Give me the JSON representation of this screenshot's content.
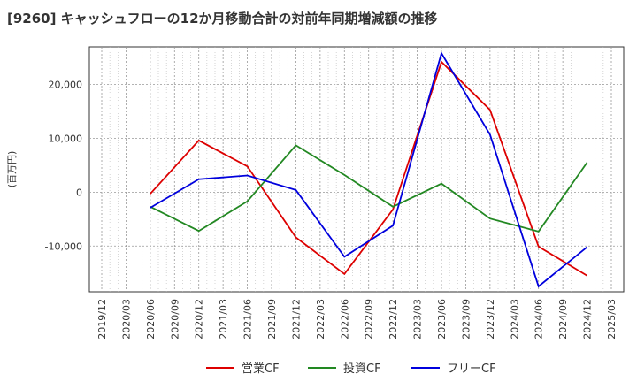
{
  "chart_data": {
    "type": "line",
    "title": "[9260]  キャッシュフローの12か月移動合計の対前年同期増減額の推移",
    "ylabel": "(百万円)",
    "xlabel": "",
    "ylim": [
      -18500,
      27000
    ],
    "yticks": [
      20000,
      10000,
      0,
      -10000
    ],
    "ytick_labels": [
      "20,000",
      "10,000",
      "0",
      "-10,000"
    ],
    "categories": [
      "2019/12",
      "2020/03",
      "2020/06",
      "2020/09",
      "2020/12",
      "2021/03",
      "2021/06",
      "2021/09",
      "2021/12",
      "2022/03",
      "2022/06",
      "2022/09",
      "2022/12",
      "2023/03",
      "2023/06",
      "2023/09",
      "2023/12",
      "2024/03",
      "2024/06",
      "2024/09",
      "2024/12",
      "2025/03"
    ],
    "grid": true,
    "legend_position": "bottom",
    "series": [
      {
        "name": "営業CF",
        "color": "#dd0000",
        "points": [
          {
            "x": "2020/06",
            "y": -300
          },
          {
            "x": "2020/12",
            "y": 9600
          },
          {
            "x": "2021/06",
            "y": 4800
          },
          {
            "x": "2021/12",
            "y": -8400
          },
          {
            "x": "2022/06",
            "y": -15200
          },
          {
            "x": "2022/12",
            "y": -3200
          },
          {
            "x": "2023/06",
            "y": 24200
          },
          {
            "x": "2023/12",
            "y": 15300
          },
          {
            "x": "2024/06",
            "y": -10100
          },
          {
            "x": "2024/12",
            "y": -15500
          }
        ]
      },
      {
        "name": "投資CF",
        "color": "#228822",
        "points": [
          {
            "x": "2020/06",
            "y": -2700
          },
          {
            "x": "2020/12",
            "y": -7200
          },
          {
            "x": "2021/06",
            "y": -1700
          },
          {
            "x": "2021/12",
            "y": 8700
          },
          {
            "x": "2022/06",
            "y": 3200
          },
          {
            "x": "2022/12",
            "y": -2700
          },
          {
            "x": "2023/06",
            "y": 1600
          },
          {
            "x": "2023/12",
            "y": -4900
          },
          {
            "x": "2024/06",
            "y": -7300
          },
          {
            "x": "2024/12",
            "y": 5500
          }
        ]
      },
      {
        "name": "フリーCF",
        "color": "#0000dd",
        "points": [
          {
            "x": "2020/06",
            "y": -2900
          },
          {
            "x": "2020/12",
            "y": 2400
          },
          {
            "x": "2021/06",
            "y": 3100
          },
          {
            "x": "2021/12",
            "y": 400
          },
          {
            "x": "2022/06",
            "y": -12000
          },
          {
            "x": "2022/12",
            "y": -6200
          },
          {
            "x": "2023/06",
            "y": 25800
          },
          {
            "x": "2023/12",
            "y": 10700
          },
          {
            "x": "2024/06",
            "y": -17500
          },
          {
            "x": "2024/12",
            "y": -10200
          }
        ]
      }
    ]
  }
}
